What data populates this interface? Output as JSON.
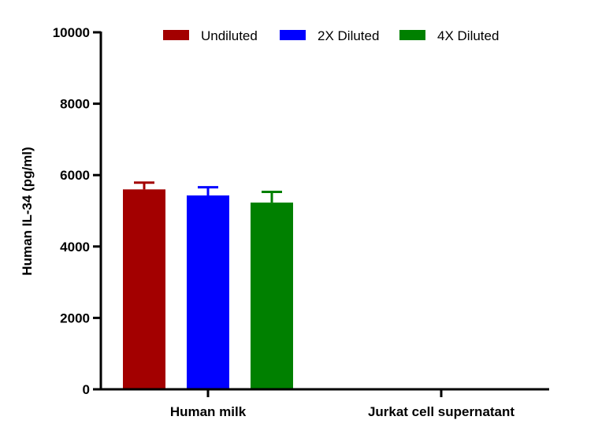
{
  "chart_data": {
    "type": "bar",
    "ylabel": "Human IL-34 (pg/ml)",
    "xlabel": "",
    "ylim": [
      0,
      10000
    ],
    "yticks": [
      0,
      2000,
      4000,
      6000,
      8000,
      10000
    ],
    "categories": [
      "Human milk",
      "Jurkat cell supernatant"
    ],
    "series": [
      {
        "name": "Undiluted",
        "color": "#a30000",
        "values": [
          5600,
          0
        ],
        "errors": [
          190,
          0
        ]
      },
      {
        "name": "2X Diluted",
        "color": "#0000ff",
        "values": [
          5430,
          0
        ],
        "errors": [
          230,
          0
        ]
      },
      {
        "name": "4X Diluted",
        "color": "#008000",
        "values": [
          5230,
          0
        ],
        "errors": [
          300,
          0
        ]
      }
    ],
    "legend_position": "top",
    "grid": false
  }
}
